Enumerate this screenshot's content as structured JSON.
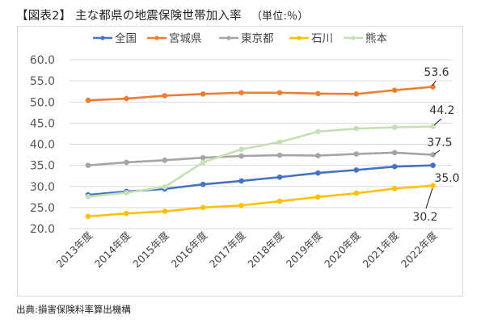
{
  "header": {
    "title": "【図表2】 主な都県の地震保険世帯加入率",
    "unit": "（単位:％）"
  },
  "footer": {
    "source": "出典:損害保険料率算出機構"
  },
  "chart_data": {
    "type": "line",
    "title": "主な都県の地震保険世帯加入率",
    "xlabel": "",
    "ylabel": "単位:％",
    "ylim": [
      20,
      60
    ],
    "yticks": [
      60,
      55,
      50,
      45,
      40,
      35,
      30,
      25,
      20
    ],
    "ytick_labels": [
      "60.0",
      "55.0",
      "50.0",
      "45.0",
      "40.0",
      "35.0",
      "30.0",
      "25.0",
      "20.0"
    ],
    "grid": "horizontal",
    "legend_position": "top",
    "categories": [
      "2013年度",
      "2014年度",
      "2015年度",
      "2016年度",
      "2017年度",
      "2018年度",
      "2019年度",
      "2020年度",
      "2021年度",
      "2022年度"
    ],
    "series": [
      {
        "name": "全国",
        "color": "#4472c4",
        "values": [
          28.0,
          28.8,
          29.4,
          30.5,
          31.3,
          32.2,
          33.2,
          33.9,
          34.7,
          35.0
        ],
        "end_label": "35.0"
      },
      {
        "name": "宮城県",
        "color": "#ed7d31",
        "values": [
          50.4,
          50.8,
          51.5,
          51.9,
          52.2,
          52.2,
          52.0,
          51.9,
          52.8,
          53.6
        ],
        "end_label": "53.6"
      },
      {
        "name": "東京都",
        "color": "#a5a5a5",
        "values": [
          35.0,
          35.7,
          36.2,
          36.8,
          37.2,
          37.4,
          37.3,
          37.7,
          38.0,
          37.5
        ],
        "end_label": "37.5"
      },
      {
        "name": "石川",
        "color": "#ffc000",
        "values": [
          22.9,
          23.6,
          24.1,
          25.0,
          25.5,
          26.5,
          27.5,
          28.4,
          29.5,
          30.2
        ],
        "end_label": "30.2"
      },
      {
        "name": "熊本",
        "color": "#c5e0b4",
        "values": [
          27.6,
          28.5,
          29.9,
          35.7,
          38.8,
          40.5,
          43.0,
          43.7,
          44.0,
          44.2
        ],
        "end_label": "44.2"
      }
    ]
  }
}
